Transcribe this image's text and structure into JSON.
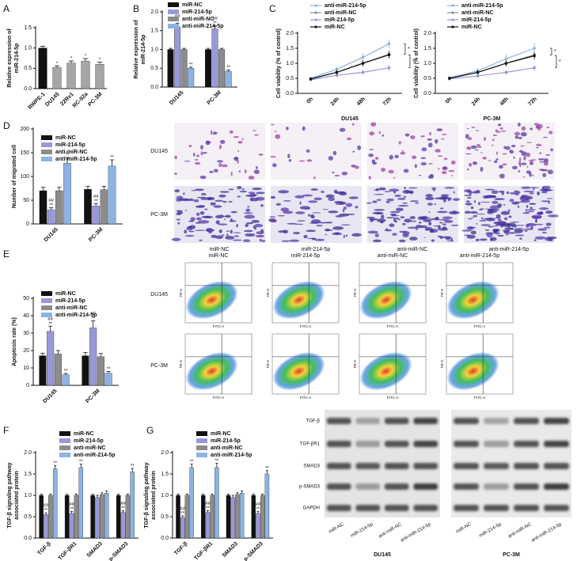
{
  "chart_data": [
    {
      "type": "bar",
      "panel": "A",
      "ylabel": [
        "Relative expression of",
        "miR-214-5p"
      ],
      "categories": [
        "RWPE-1",
        "DU145",
        "22Rv1",
        "RC-92a",
        "PC-3M"
      ],
      "values": [
        1.0,
        0.52,
        0.63,
        0.68,
        0.6
      ],
      "errors": [
        0.04,
        0.04,
        0.05,
        0.06,
        0.05
      ],
      "markers": [
        null,
        [
          "*"
        ],
        [
          "*"
        ],
        [
          "*"
        ],
        [
          "*"
        ]
      ],
      "colors": [
        "#111111",
        "#a6a6a6",
        "#a6a6a6",
        "#a6a6a6",
        "#a6a6a6"
      ],
      "ylim": [
        0,
        1.5
      ],
      "yticks": [
        {
          "value": 0,
          "label": "0.0"
        },
        0.5,
        {
          "value": 1,
          "label": "1.0"
        },
        1.5
      ]
    },
    {
      "type": "bar",
      "panel": "B",
      "ylabel": [
        "Relative expression of",
        "miR-214-5p"
      ],
      "categories": [
        "DU145",
        "PC-3M"
      ],
      "series": [
        {
          "name": "miR-NC",
          "color": "#111111",
          "values": [
            1.0,
            1.0
          ],
          "errors": [
            0.03,
            0.03
          ],
          "markers": [
            null,
            null
          ]
        },
        {
          "name": "miR-214-5p",
          "color": "#9a98d8",
          "values": [
            1.6,
            1.55
          ],
          "errors": [
            0.1,
            0.08
          ],
          "markers": [
            [
              "##",
              "**"
            ],
            [
              "##",
              "**"
            ]
          ]
        },
        {
          "name": "anti-miR-NC",
          "color": "#8c8c8c",
          "values": [
            1.0,
            1.0
          ],
          "errors": [
            0.03,
            0.03
          ],
          "markers": [
            null,
            null
          ]
        },
        {
          "name": "anti-miR-214-5p",
          "color": "#8db3e2",
          "values": [
            0.5,
            0.42
          ],
          "errors": [
            0.03,
            0.03
          ],
          "markers": [
            [
              "**"
            ],
            [
              "**"
            ]
          ]
        }
      ],
      "ylim": [
        0,
        2
      ],
      "yticks": [
        {
          "value": 0,
          "label": "0.0"
        },
        0.5,
        {
          "value": 1,
          "label": "1.0"
        },
        1.5,
        {
          "value": 2,
          "label": "2.0"
        }
      ]
    },
    {
      "type": "line",
      "panel": "C",
      "ylabel": [
        "Cell viability (% of control)"
      ],
      "xlabel": "DU145",
      "categories": [
        "0h",
        "24h",
        "48h",
        "72h"
      ],
      "series": [
        {
          "name": "anti-miR-214-5p",
          "color": "#8db3e2",
          "values": [
            0.5,
            0.8,
            1.2,
            1.65
          ],
          "errors": [
            0.05,
            0.1,
            0.15,
            0.15
          ]
        },
        {
          "name": "anti-miR-NC",
          "color": "#8c8c8c",
          "values": [
            0.48,
            0.7,
            1.0,
            1.3
          ],
          "errors": [
            0.05,
            0.08,
            0.1,
            0.12
          ]
        },
        {
          "name": "miR-214-5p",
          "color": "#9a98d8",
          "values": [
            0.45,
            0.6,
            0.7,
            0.85
          ],
          "errors": [
            0.05,
            0.06,
            0.08,
            0.1
          ]
        },
        {
          "name": "miR-NC",
          "color": "#111111",
          "values": [
            0.48,
            0.7,
            1.0,
            1.28
          ],
          "errors": [
            0.05,
            0.08,
            0.1,
            0.12
          ]
        }
      ],
      "annotations": [
        "*",
        "*"
      ],
      "ylim": [
        0,
        2
      ],
      "yticks": [
        {
          "value": 0,
          "label": "0.0"
        },
        0.5,
        {
          "value": 1,
          "label": "1.0"
        },
        1.5,
        {
          "value": 2,
          "label": "2.0"
        }
      ]
    },
    {
      "type": "line",
      "ylabel": [
        "Cell viability (% of control)"
      ],
      "xlabel": "PC-3M",
      "categories": [
        "0h",
        "24h",
        "48h",
        "72h"
      ],
      "series": [
        {
          "name": "anti-miR-214-5p",
          "color": "#8db3e2",
          "values": [
            0.52,
            0.75,
            1.15,
            1.5
          ],
          "errors": [
            0.05,
            0.1,
            0.15,
            0.18
          ]
        },
        {
          "name": "anti-miR-NC",
          "color": "#8c8c8c",
          "values": [
            0.5,
            0.7,
            1.0,
            1.28
          ],
          "errors": [
            0.05,
            0.08,
            0.1,
            0.12
          ]
        },
        {
          "name": "miR-214-5p",
          "color": "#9a98d8",
          "values": [
            0.48,
            0.58,
            0.7,
            0.85
          ],
          "errors": [
            0.05,
            0.06,
            0.08,
            0.1
          ]
        },
        {
          "name": "miR-NC",
          "color": "#111111",
          "values": [
            0.5,
            0.7,
            1.0,
            1.25
          ],
          "errors": [
            0.05,
            0.08,
            0.1,
            0.12
          ]
        }
      ],
      "annotations": [
        "*",
        "*"
      ],
      "ylim": [
        0,
        2
      ],
      "yticks": [
        {
          "value": 0,
          "label": "0.0"
        },
        0.5,
        {
          "value": 1,
          "label": "1.0"
        },
        1.5,
        {
          "value": 2,
          "label": "2.0"
        }
      ]
    },
    {
      "type": "bar",
      "panel": "D",
      "ylabel": [
        "Number of migrated cell"
      ],
      "categories": [
        "DU145",
        "PC-3M"
      ],
      "series": [
        {
          "name": "miR-NC",
          "color": "#111111",
          "values": [
            70,
            73
          ],
          "errors": [
            7,
            6
          ],
          "markers": [
            null,
            null
          ]
        },
        {
          "name": "miR-214-5p",
          "color": "#9a98d8",
          "values": [
            30,
            38
          ],
          "errors": [
            4,
            5
          ],
          "markers": [
            [
              "##",
              "**"
            ],
            [
              "##",
              "**"
            ]
          ]
        },
        {
          "name": "anti-miR-NC",
          "color": "#8c8c8c",
          "values": [
            70,
            72
          ],
          "errors": [
            7,
            7
          ],
          "markers": [
            null,
            null
          ]
        },
        {
          "name": "anti-miR-214-5p",
          "color": "#8db3e2",
          "values": [
            128,
            122
          ],
          "errors": [
            12,
            13
          ],
          "markers": [
            [
              "**"
            ],
            [
              "**"
            ]
          ]
        }
      ],
      "ylim": [
        0,
        200
      ],
      "yticks": [
        0,
        50,
        100,
        150,
        200
      ]
    },
    {
      "type": "bar",
      "panel": "E",
      "ylabel": [
        "Apoptosis rate (%)"
      ],
      "categories": [
        "DU145",
        "PC-3M"
      ],
      "series": [
        {
          "name": "miR-NC",
          "color": "#111111",
          "values": [
            17,
            17
          ],
          "errors": [
            1.5,
            1.8
          ],
          "markers": [
            null,
            null
          ]
        },
        {
          "name": "miR-214-5p",
          "color": "#9a98d8",
          "values": [
            31,
            33
          ],
          "errors": [
            3,
            4
          ],
          "markers": [
            [
              "##",
              "**"
            ],
            [
              "##",
              "**"
            ]
          ]
        },
        {
          "name": "anti-miR-NC",
          "color": "#8c8c8c",
          "values": [
            18,
            16.5
          ],
          "errors": [
            2,
            1.8
          ],
          "markers": [
            null,
            null
          ]
        },
        {
          "name": "anti-miR-214-5p",
          "color": "#8db3e2",
          "values": [
            6,
            7
          ],
          "errors": [
            0.8,
            0.9
          ],
          "markers": [
            [
              "**"
            ],
            [
              "**"
            ]
          ]
        }
      ],
      "ylim": [
        0,
        50
      ],
      "yticks": [
        0,
        10,
        20,
        30,
        40,
        50
      ]
    },
    {
      "type": "bar",
      "panel": "F",
      "ylabel": [
        "TGF-β signaling pathway",
        "associated protein"
      ],
      "xlabel": "DU145",
      "categories": [
        "TGF-β",
        "TGF-βR1",
        "SMAD3",
        "p-SMAD3"
      ],
      "series": [
        {
          "name": "miR-NC",
          "color": "#111111",
          "values": [
            1.0,
            1.0,
            1.0,
            1.0
          ],
          "errors": [
            0.03,
            0.03,
            0.03,
            0.03
          ],
          "markers": [
            null,
            null,
            null,
            null
          ]
        },
        {
          "name": "miR-214-5p",
          "color": "#9a98d8",
          "values": [
            0.55,
            0.58,
            0.95,
            0.6
          ],
          "errors": [
            0.04,
            0.04,
            0.05,
            0.04
          ],
          "markers": [
            [
              "##",
              "**"
            ],
            [
              "##",
              "**"
            ],
            null,
            [
              "##",
              "**"
            ]
          ]
        },
        {
          "name": "anti-miR-NC",
          "color": "#8c8c8c",
          "values": [
            1.0,
            1.0,
            1.02,
            1.0
          ],
          "errors": [
            0.03,
            0.03,
            0.04,
            0.03
          ],
          "markers": [
            null,
            null,
            null,
            null
          ]
        },
        {
          "name": "anti-miR-214-5p",
          "color": "#8db3e2",
          "values": [
            1.62,
            1.65,
            1.05,
            1.55
          ],
          "errors": [
            0.08,
            0.08,
            0.05,
            0.08
          ],
          "markers": [
            [
              "**"
            ],
            [
              "**"
            ],
            null,
            [
              "**"
            ]
          ]
        }
      ],
      "ylim": [
        0,
        2
      ],
      "yticks": [
        {
          "value": 0,
          "label": "0.0"
        },
        0.5,
        {
          "value": 1,
          "label": "1.0"
        },
        1.5,
        {
          "value": 2,
          "label": "2.0"
        }
      ]
    },
    {
      "type": "bar",
      "panel": "G",
      "ylabel": [
        "TGF-β signaling pathway",
        "associated protein"
      ],
      "xlabel": "PC-3M",
      "categories": [
        "TGF-β",
        "TGF-βR1",
        "SMAD3",
        "p-SMAD3"
      ],
      "series": [
        {
          "name": "miR-NC",
          "color": "#111111",
          "values": [
            1.0,
            1.0,
            1.0,
            1.0
          ],
          "errors": [
            0.03,
            0.03,
            0.03,
            0.03
          ],
          "markers": [
            null,
            null,
            null,
            null
          ]
        },
        {
          "name": "miR-214-5p",
          "color": "#9a98d8",
          "values": [
            0.48,
            0.6,
            0.95,
            0.58
          ],
          "errors": [
            0.04,
            0.04,
            0.05,
            0.04
          ],
          "markers": [
            [
              "##",
              "**"
            ],
            [
              "##",
              "**"
            ],
            null,
            [
              "##",
              "**"
            ]
          ]
        },
        {
          "name": "anti-miR-NC",
          "color": "#8c8c8c",
          "values": [
            1.0,
            1.0,
            1.02,
            1.0
          ],
          "errors": [
            0.03,
            0.03,
            0.04,
            0.03
          ],
          "markers": [
            null,
            null,
            null,
            null
          ]
        },
        {
          "name": "anti-miR-214-5p",
          "color": "#8db3e2",
          "values": [
            1.65,
            1.65,
            1.05,
            1.5
          ],
          "errors": [
            0.08,
            0.1,
            0.05,
            0.08
          ],
          "markers": [
            [
              "**"
            ],
            [
              "**"
            ],
            null,
            [
              "**"
            ]
          ]
        }
      ],
      "ylim": [
        0,
        2
      ],
      "yticks": [
        {
          "value": 0,
          "label": "0.0"
        },
        0.5,
        {
          "value": 1,
          "label": "1.0"
        },
        1.5,
        {
          "value": 2,
          "label": "2.0"
        }
      ]
    }
  ],
  "migration_images": {
    "rows": [
      "DU145",
      "PC-3M"
    ],
    "columns": [
      "miR-NC",
      "miR-214-5p",
      "anti-miR-NC",
      "anti-miR-214-5p"
    ]
  },
  "flow_cytometry": {
    "rows": [
      "DU145",
      "PC-3M"
    ],
    "columns": [
      "miR-NC",
      "miR-214-5p",
      "anti-miR-NC",
      "anti-miR-214-5p"
    ],
    "x_axis": "FITC-A",
    "y_axis": "PE-A"
  },
  "western_blot": {
    "proteins": [
      "TGF-β",
      "TGF-βR1",
      "SMAD3",
      "p-SMAD3",
      "GAPDH"
    ],
    "lanes": [
      "miR-NC",
      "miR-214-5p",
      "anti-miR-NC",
      "anti-miR-214-5p"
    ],
    "groups": [
      "DU145",
      "PC-3M"
    ]
  }
}
